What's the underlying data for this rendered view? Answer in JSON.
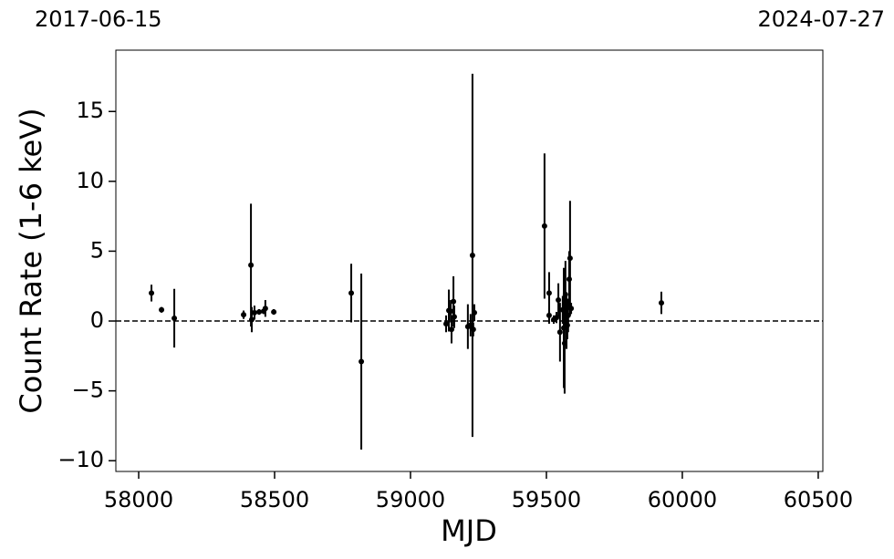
{
  "chart_data": {
    "type": "scatter",
    "top_left_label": "2017-06-15",
    "top_right_label": "2024-07-27",
    "xlabel": "MJD",
    "ylabel": "Count Rate (1-6 keV)",
    "xlim": [
      57916,
      60517
    ],
    "ylim": [
      -10.77,
      19.39
    ],
    "xticks": [
      58000,
      58500,
      59000,
      59500,
      60000,
      60500
    ],
    "yticks": [
      {
        "value": -10,
        "label": "−10"
      },
      {
        "value": -5,
        "label": "−5"
      },
      0,
      5,
      10,
      15
    ],
    "hline": 0,
    "color": "#000000",
    "x": [
      58047,
      58084,
      58131,
      58386,
      58413,
      58416,
      58426,
      58443,
      58460,
      58466,
      58497,
      58782,
      58819,
      59131,
      59141,
      59148,
      59151,
      59158,
      59161,
      59211,
      59221,
      59228,
      59231,
      59235,
      59493,
      59510,
      59510,
      59527,
      59537,
      59544,
      59550,
      59560,
      59564,
      59567,
      59570,
      59574,
      59577,
      59580,
      59584,
      59587,
      59591,
      59923
    ],
    "values": [
      2.0,
      0.8,
      0.2,
      0.45,
      4.0,
      0.1,
      0.6,
      0.65,
      0.7,
      0.9,
      0.65,
      2.0,
      -2.9,
      -0.2,
      0.75,
      0.7,
      -0.6,
      1.4,
      0.3,
      -0.4,
      -0.3,
      4.7,
      -0.6,
      0.6,
      6.8,
      2.0,
      0.4,
      0.1,
      0.25,
      1.5,
      -0.8,
      0.8,
      -0.5,
      -1.6,
      1.9,
      0.0,
      -0.3,
      0.4,
      3.0,
      4.5,
      0.9,
      1.3
    ],
    "errors": [
      0.6,
      0.2,
      2.1,
      0.3,
      4.4,
      0.9,
      0.5,
      0.2,
      0.2,
      0.6,
      0.2,
      2.1,
      6.3,
      0.6,
      1.5,
      0.8,
      1.0,
      1.8,
      0.8,
      1.6,
      0.8,
      13.0,
      0.5,
      0.6,
      5.2,
      1.5,
      0.6,
      0.3,
      0.4,
      1.2,
      2.1,
      1.0,
      4.3,
      3.6,
      2.4,
      2.0,
      1.0,
      1.2,
      2.0,
      4.1,
      0.4,
      0.8
    ]
  }
}
